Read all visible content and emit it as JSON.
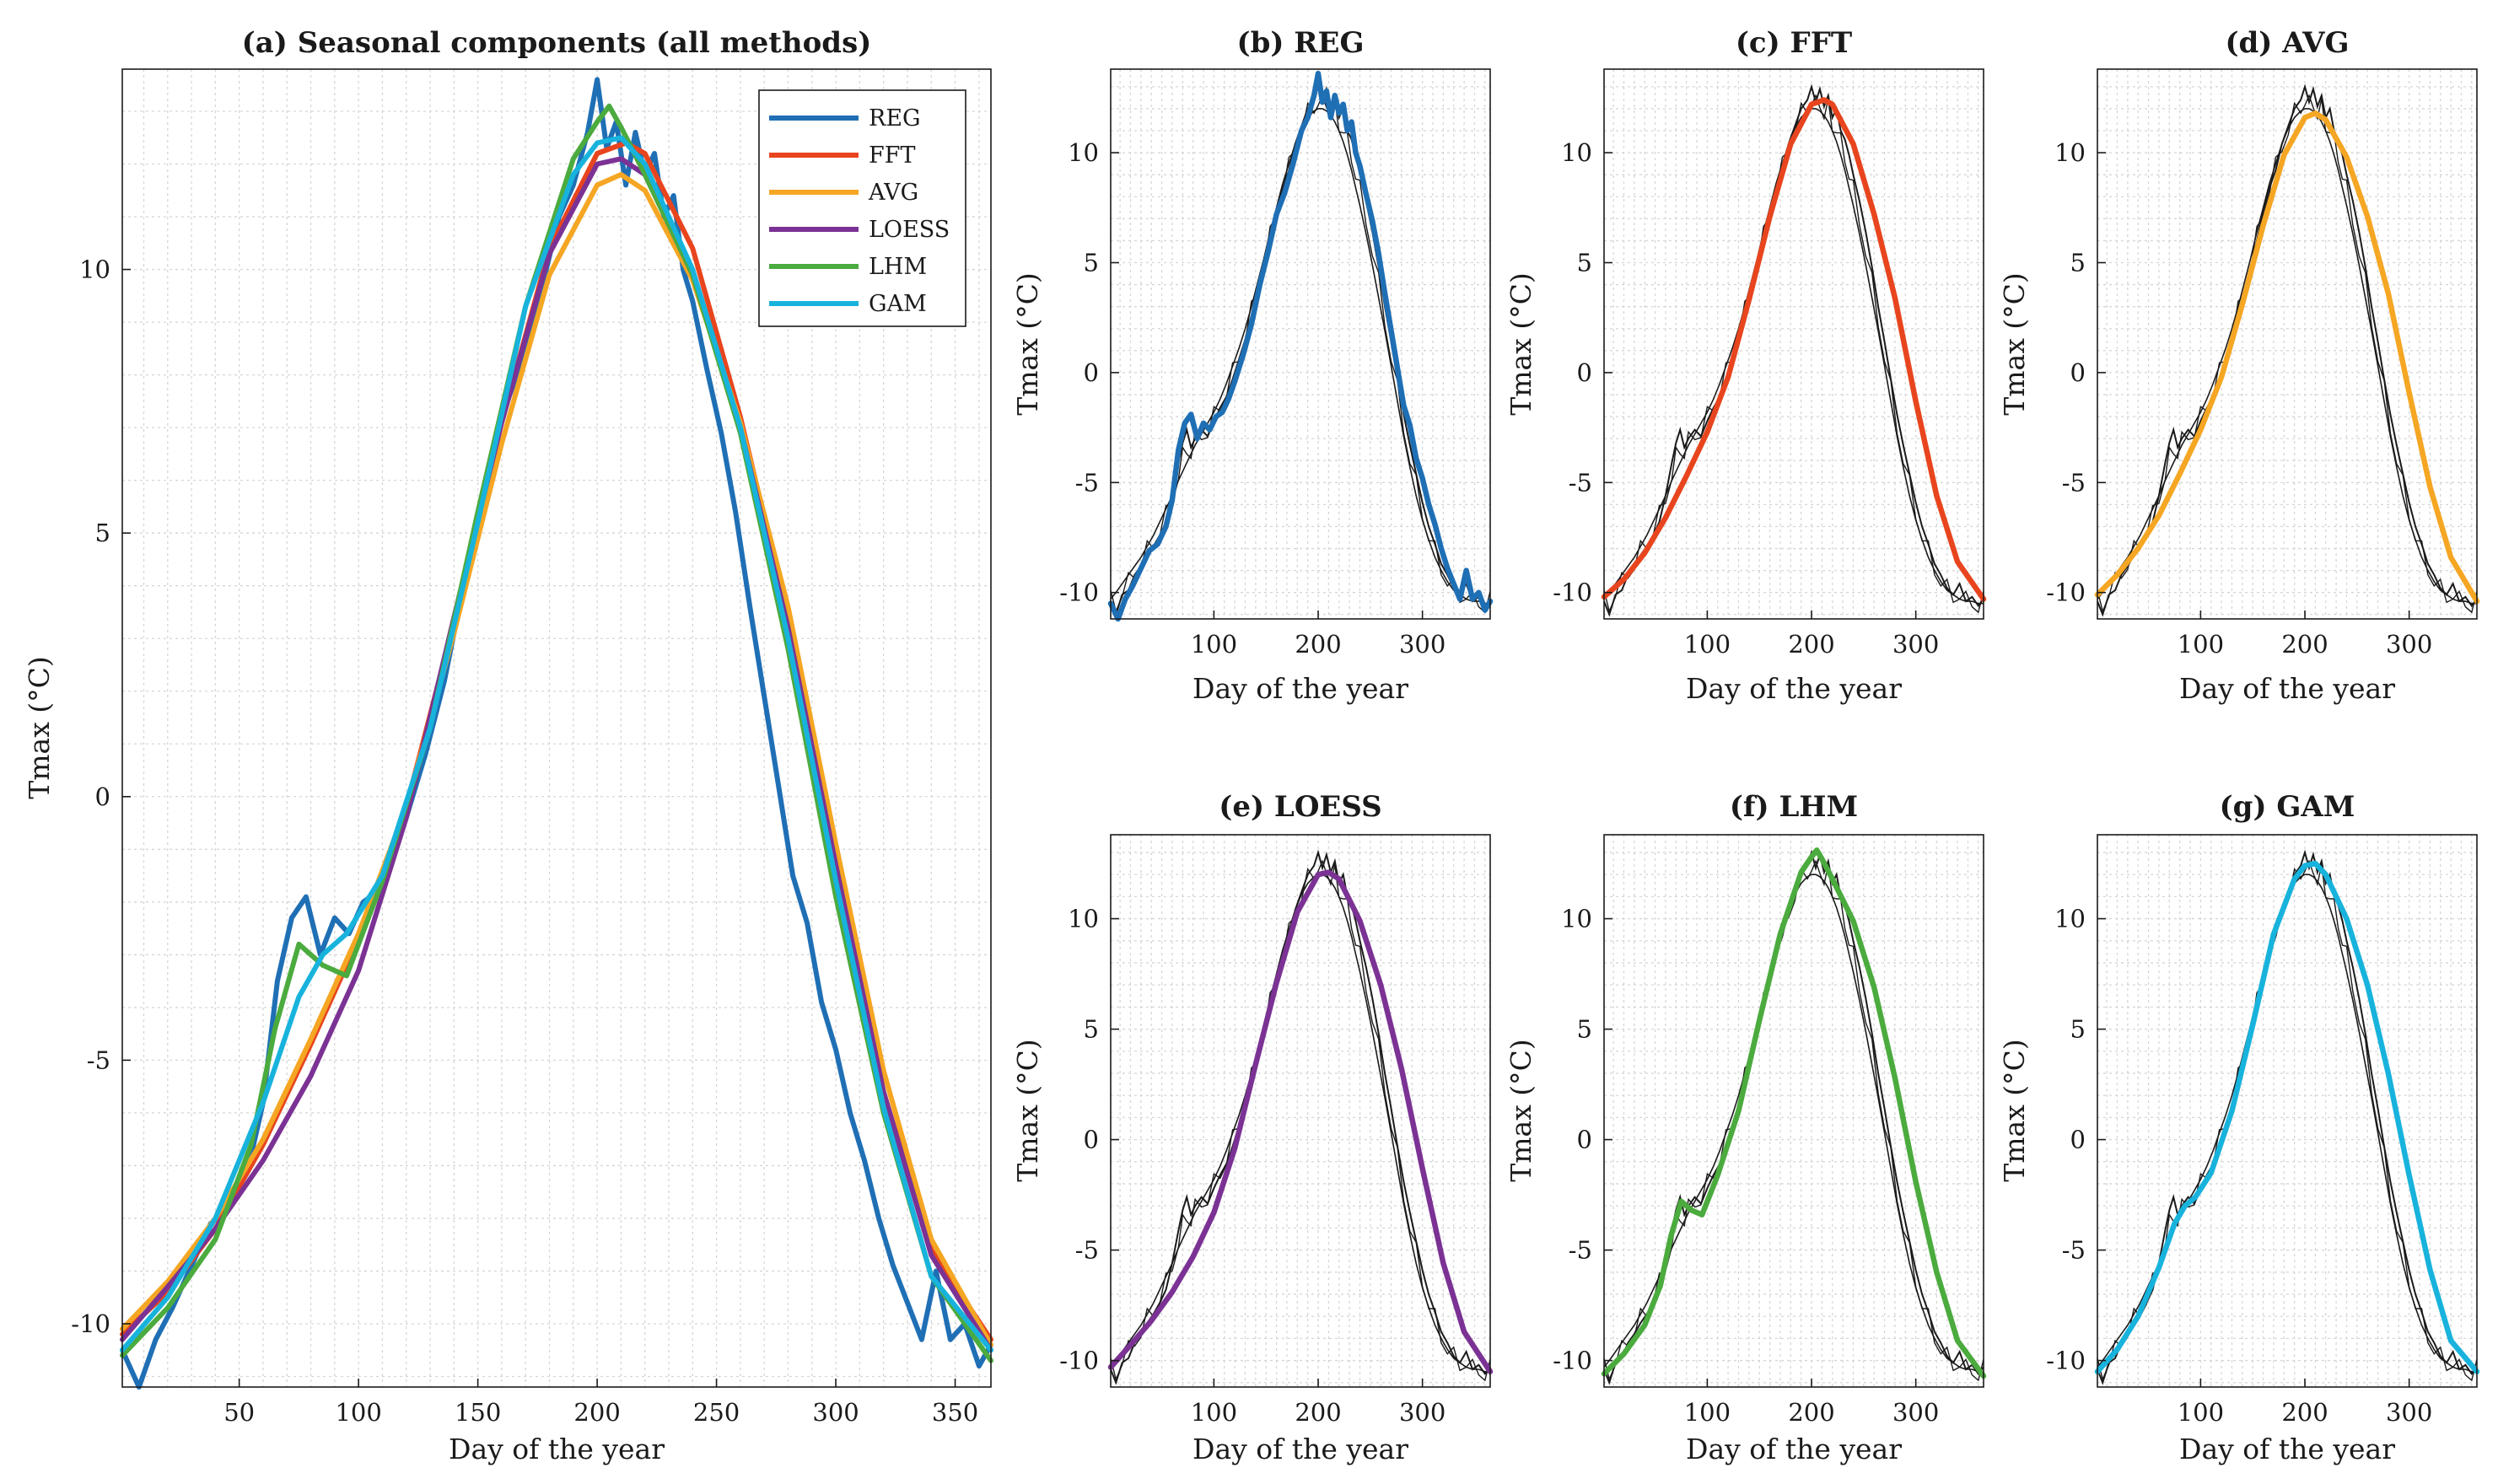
{
  "figure": {
    "xlabel": "Day of the year",
    "ylabel": "Tmax (°C)",
    "raw_color": "#1a1a1a"
  },
  "chart_data": [
    {
      "id": "a",
      "type": "line",
      "title": "(a) Seasonal components (all methods)",
      "xlabel": "Day of the year",
      "ylabel": "Tmax (°C)",
      "xlim": [
        1,
        365
      ],
      "ylim": [
        -11.2,
        13.8
      ],
      "xticks": [
        50,
        100,
        150,
        200,
        250,
        300,
        350
      ],
      "yticks": [
        -10,
        -5,
        0,
        5,
        10
      ],
      "grid": true,
      "legend_position": "top-right",
      "series": [
        "REG",
        "FFT",
        "AVG",
        "LOESS",
        "LHM",
        "GAM"
      ],
      "show_raw": false
    },
    {
      "id": "b",
      "type": "line",
      "title": "(b) REG",
      "xlabel": "Day of the year",
      "ylabel": "Tmax (°C)",
      "xlim": [
        1,
        365
      ],
      "ylim": [
        -11.2,
        13.8
      ],
      "xticks": [
        100,
        200,
        300
      ],
      "yticks": [
        -10,
        -5,
        0,
        5,
        10
      ],
      "grid": true,
      "series": [
        "REG"
      ],
      "show_raw": true
    },
    {
      "id": "c",
      "type": "line",
      "title": "(c) FFT",
      "xlabel": "Day of the year",
      "ylabel": "Tmax (°C)",
      "xlim": [
        1,
        365
      ],
      "ylim": [
        -11.2,
        13.8
      ],
      "xticks": [
        100,
        200,
        300
      ],
      "yticks": [
        -10,
        -5,
        0,
        5,
        10
      ],
      "grid": true,
      "series": [
        "FFT"
      ],
      "show_raw": true
    },
    {
      "id": "d",
      "type": "line",
      "title": "(d) AVG",
      "xlabel": "Day of the year",
      "ylabel": "Tmax (°C)",
      "xlim": [
        1,
        365
      ],
      "ylim": [
        -11.2,
        13.8
      ],
      "xticks": [
        100,
        200,
        300
      ],
      "yticks": [
        -10,
        -5,
        0,
        5,
        10
      ],
      "grid": true,
      "series": [
        "AVG"
      ],
      "show_raw": true
    },
    {
      "id": "e",
      "type": "line",
      "title": "(e) LOESS",
      "xlabel": "Day of the year",
      "ylabel": "Tmax (°C)",
      "xlim": [
        1,
        365
      ],
      "ylim": [
        -11.2,
        13.8
      ],
      "xticks": [
        100,
        200,
        300
      ],
      "yticks": [
        -10,
        -5,
        0,
        5,
        10
      ],
      "grid": true,
      "series": [
        "LOESS"
      ],
      "show_raw": true
    },
    {
      "id": "f",
      "type": "line",
      "title": "(f) LHM",
      "xlabel": "Day of the year",
      "ylabel": "Tmax (°C)",
      "xlim": [
        1,
        365
      ],
      "ylim": [
        -11.2,
        13.8
      ],
      "xticks": [
        100,
        200,
        300
      ],
      "yticks": [
        -10,
        -5,
        0,
        5,
        10
      ],
      "grid": true,
      "series": [
        "LHM"
      ],
      "show_raw": true
    },
    {
      "id": "g",
      "type": "line",
      "title": "(g) GAM",
      "xlabel": "Day of the year",
      "ylabel": "Tmax (°C)",
      "xlim": [
        1,
        365
      ],
      "ylim": [
        -11.2,
        13.8
      ],
      "xticks": [
        100,
        200,
        300
      ],
      "yticks": [
        -10,
        -5,
        0,
        5,
        10
      ],
      "grid": true,
      "series": [
        "GAM"
      ],
      "show_raw": true
    }
  ],
  "series_data": {
    "REG": {
      "name": "REG",
      "color": "#1f6fb5",
      "x": [
        1,
        8,
        15,
        22,
        30,
        38,
        46,
        54,
        60,
        66,
        72,
        78,
        84,
        90,
        96,
        102,
        108,
        114,
        120,
        128,
        136,
        144,
        152,
        160,
        168,
        176,
        184,
        190,
        196,
        200,
        204,
        208,
        212,
        216,
        220,
        224,
        228,
        232,
        236,
        240,
        246,
        252,
        258,
        264,
        270,
        276,
        282,
        288,
        294,
        300,
        306,
        312,
        318,
        324,
        330,
        336,
        342,
        348,
        354,
        360,
        365
      ],
      "y": [
        -10.5,
        -11.2,
        -10.3,
        -9.7,
        -8.9,
        -8.1,
        -7.8,
        -7.0,
        -5.8,
        -3.5,
        -2.3,
        -1.9,
        -3.0,
        -2.3,
        -2.6,
        -2.0,
        -1.8,
        -1.2,
        -0.4,
        0.8,
        2.2,
        4.0,
        5.5,
        7.2,
        8.2,
        9.5,
        11.0,
        11.6,
        12.6,
        13.6,
        12.3,
        12.8,
        11.6,
        12.6,
        11.8,
        12.2,
        11.0,
        11.4,
        10.0,
        9.4,
        8.1,
        6.9,
        5.4,
        3.6,
        1.9,
        0.2,
        -1.5,
        -2.4,
        -3.9,
        -4.8,
        -6.0,
        -6.9,
        -8.0,
        -8.9,
        -9.6,
        -10.3,
        -9.0,
        -10.3,
        -10.0,
        -10.8,
        -10.4
      ]
    },
    "FFT": {
      "name": "FFT",
      "color": "#e8451e",
      "x": [
        1,
        20,
        40,
        60,
        80,
        100,
        120,
        140,
        160,
        180,
        200,
        212,
        220,
        240,
        260,
        280,
        300,
        320,
        340,
        365
      ],
      "y": [
        -10.2,
        -9.4,
        -8.2,
        -6.6,
        -4.7,
        -2.7,
        -0.2,
        3.3,
        7.1,
        10.4,
        12.2,
        12.4,
        12.2,
        10.4,
        7.2,
        3.4,
        -1.3,
        -5.6,
        -8.6,
        -10.3
      ]
    },
    "AVG": {
      "name": "AVG",
      "color": "#f5a623",
      "x": [
        1,
        20,
        40,
        60,
        80,
        100,
        120,
        140,
        160,
        180,
        200,
        210,
        220,
        240,
        260,
        280,
        300,
        320,
        340,
        365
      ],
      "y": [
        -10.1,
        -9.2,
        -8.0,
        -6.5,
        -4.6,
        -2.6,
        -0.2,
        3.1,
        6.7,
        9.9,
        11.6,
        11.8,
        11.5,
        9.8,
        7.1,
        3.6,
        -0.9,
        -5.2,
        -8.4,
        -10.4
      ]
    },
    "LOESS": {
      "name": "LOESS",
      "color": "#7b3294",
      "x": [
        1,
        20,
        40,
        60,
        80,
        100,
        120,
        140,
        160,
        180,
        200,
        210,
        220,
        240,
        260,
        280,
        300,
        320,
        340,
        365
      ],
      "y": [
        -10.3,
        -9.3,
        -8.2,
        -6.9,
        -5.3,
        -3.3,
        -0.4,
        3.4,
        7.1,
        10.3,
        12.0,
        12.1,
        11.8,
        9.9,
        7.0,
        3.2,
        -1.3,
        -5.6,
        -8.7,
        -10.5
      ]
    },
    "LHM": {
      "name": "LHM",
      "color": "#4bab3e",
      "x": [
        1,
        20,
        40,
        55,
        65,
        75,
        85,
        95,
        110,
        130,
        150,
        170,
        190,
        200,
        205,
        210,
        220,
        240,
        260,
        280,
        300,
        320,
        340,
        365
      ],
      "y": [
        -10.6,
        -9.7,
        -8.4,
        -6.6,
        -4.4,
        -2.8,
        -3.2,
        -3.4,
        -1.6,
        1.3,
        5.4,
        9.3,
        12.1,
        12.8,
        13.1,
        12.7,
        11.8,
        9.9,
        6.9,
        2.8,
        -1.9,
        -6.0,
        -9.1,
        -10.7
      ]
    },
    "GAM": {
      "name": "GAM",
      "color": "#18b3dc",
      "x": [
        1,
        20,
        40,
        60,
        75,
        85,
        95,
        110,
        130,
        150,
        170,
        190,
        200,
        210,
        220,
        240,
        260,
        280,
        300,
        320,
        340,
        365
      ],
      "y": [
        -10.5,
        -9.5,
        -8.0,
        -5.8,
        -3.8,
        -3.0,
        -2.6,
        -1.5,
        1.3,
        5.2,
        9.3,
        11.8,
        12.4,
        12.5,
        12.0,
        10.0,
        7.0,
        3.0,
        -1.6,
        -5.9,
        -9.1,
        -10.5
      ]
    }
  },
  "raw_data": {
    "description": "Black thin lines in panels (b)-(g): raw Tmax series plus smooth reference curve",
    "x": [
      1,
      6,
      12,
      18,
      24,
      30,
      36,
      42,
      48,
      54,
      60,
      66,
      70,
      74,
      78,
      82,
      88,
      94,
      100,
      106,
      112,
      118,
      124,
      130,
      136,
      142,
      148,
      154,
      160,
      166,
      172,
      178,
      184,
      190,
      196,
      200,
      204,
      208,
      212,
      216,
      220,
      224,
      228,
      232,
      236,
      240,
      246,
      252,
      258,
      264,
      270,
      276,
      282,
      288,
      294,
      300,
      306,
      312,
      318,
      324,
      330,
      336,
      342,
      348,
      354,
      360,
      365
    ],
    "y": [
      -10.4,
      -11.0,
      -10.1,
      -9.9,
      -9.2,
      -8.8,
      -8.3,
      -7.9,
      -7.4,
      -6.8,
      -5.6,
      -4.1,
      -3.2,
      -2.6,
      -3.4,
      -3.0,
      -2.6,
      -2.9,
      -2.2,
      -1.6,
      -1.1,
      -0.3,
      0.6,
      1.5,
      2.6,
      3.6,
      4.8,
      6.0,
      7.3,
      8.4,
      9.2,
      10.4,
      11.2,
      12.0,
      12.4,
      13.0,
      12.3,
      12.9,
      12.1,
      12.6,
      11.6,
      12.0,
      11.0,
      10.6,
      9.9,
      9.0,
      7.8,
      6.4,
      4.8,
      3.0,
      1.4,
      -0.3,
      -1.9,
      -3.3,
      -4.6,
      -5.9,
      -7.0,
      -7.8,
      -8.7,
      -9.2,
      -9.8,
      -10.1,
      -9.6,
      -10.4,
      -10.2,
      -10.6,
      -10.3
    ],
    "y_smooth": [
      -10.3,
      -10.0,
      -9.6,
      -9.2,
      -8.8,
      -8.4,
      -7.9,
      -7.4,
      -6.8,
      -6.2,
      -5.6,
      -4.9,
      -4.5,
      -4.1,
      -3.7,
      -3.3,
      -2.8,
      -2.3,
      -1.8,
      -1.2,
      -0.5,
      0.3,
      1.1,
      2.0,
      3.0,
      4.1,
      5.2,
      6.4,
      7.5,
      8.6,
      9.5,
      10.4,
      11.1,
      11.6,
      11.9,
      12.0,
      12.0,
      11.9,
      11.7,
      11.4,
      11.0,
      10.5,
      9.9,
      9.2,
      8.4,
      7.6,
      6.3,
      4.9,
      3.4,
      1.9,
      0.3,
      -1.3,
      -2.9,
      -4.3,
      -5.6,
      -6.7,
      -7.6,
      -8.4,
      -9.0,
      -9.5,
      -9.9,
      -10.1,
      -10.3,
      -10.4,
      -10.4,
      -10.5,
      -10.5
    ]
  }
}
